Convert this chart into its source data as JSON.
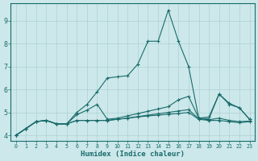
{
  "xlabel": "Humidex (Indice chaleur)",
  "bg_color": "#cce8ea",
  "line_color": "#1a6b6b",
  "grid_color": "#aed0d4",
  "line1": [
    4.0,
    4.3,
    4.6,
    4.65,
    4.5,
    4.5,
    5.0,
    5.35,
    5.9,
    6.5,
    6.55,
    6.6,
    7.1,
    8.1,
    8.1,
    9.45,
    8.1,
    7.0,
    4.75,
    4.8,
    5.8,
    5.4,
    5.2,
    4.7
  ],
  "line2": [
    4.0,
    4.3,
    4.6,
    4.65,
    4.5,
    4.5,
    4.9,
    5.1,
    5.35,
    4.7,
    4.75,
    4.85,
    4.95,
    5.05,
    5.15,
    5.25,
    5.55,
    5.7,
    4.75,
    4.72,
    5.8,
    5.35,
    5.2,
    4.7
  ],
  "line3": [
    4.0,
    4.3,
    4.6,
    4.65,
    4.5,
    4.5,
    4.65,
    4.65,
    4.65,
    4.65,
    4.7,
    4.75,
    4.82,
    4.88,
    4.94,
    5.0,
    5.06,
    5.12,
    4.72,
    4.68,
    4.75,
    4.65,
    4.6,
    4.62
  ],
  "line4": [
    4.0,
    4.3,
    4.6,
    4.65,
    4.5,
    4.5,
    4.65,
    4.65,
    4.65,
    4.65,
    4.7,
    4.75,
    4.8,
    4.85,
    4.88,
    4.92,
    4.95,
    5.0,
    4.7,
    4.65,
    4.65,
    4.6,
    4.55,
    4.6
  ],
  "ylim": [
    3.75,
    9.75
  ],
  "yticks": [
    4,
    5,
    6,
    7,
    8,
    9
  ],
  "xticks": [
    0,
    1,
    2,
    3,
    4,
    5,
    6,
    7,
    8,
    9,
    10,
    11,
    12,
    13,
    14,
    15,
    16,
    17,
    18,
    19,
    20,
    21,
    22,
    23
  ],
  "figsize": [
    3.2,
    2.0
  ],
  "dpi": 100
}
